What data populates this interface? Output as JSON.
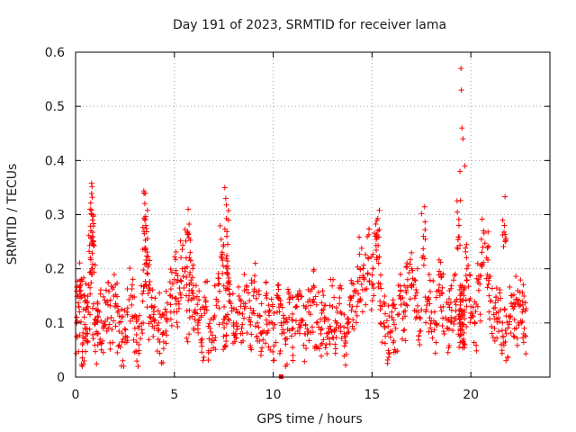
{
  "chart_data": {
    "type": "scatter",
    "title": "Day 191 of 2023, SRMTID for receiver lama",
    "xlabel": "GPS time / hours",
    "ylabel": "SRMTID / TECUs",
    "xlim": [
      0,
      24
    ],
    "ylim": [
      0,
      0.6
    ],
    "xticks": [
      0,
      5,
      10,
      15,
      20
    ],
    "xtick_labels": [
      "0",
      "5",
      "10",
      "15",
      "20"
    ],
    "yticks": [
      0,
      0.1,
      0.2,
      0.3,
      0.4,
      0.5,
      0.6
    ],
    "ytick_labels": [
      "0",
      "0.1",
      "0.2",
      "0.3",
      "0.4",
      "0.5",
      "0.6"
    ],
    "grid": true,
    "marker": "+",
    "color": "#ff0000",
    "series": [
      {
        "name": "SRMTID",
        "x": [
          0.05,
          0.15,
          0.25,
          0.35,
          0.45,
          0.55,
          0.65,
          0.75,
          0.82,
          0.85,
          0.9,
          0.95,
          1.05,
          1.2,
          1.4,
          1.6,
          1.8,
          2.0,
          2.2,
          2.4,
          2.6,
          2.8,
          3.0,
          3.2,
          3.4,
          3.5,
          3.55,
          3.6,
          3.7,
          3.8,
          4.0,
          4.2,
          4.4,
          4.6,
          4.8,
          5.0,
          5.2,
          5.4,
          5.6,
          5.7,
          5.8,
          5.9,
          6.0,
          6.2,
          6.4,
          6.6,
          6.8,
          7.0,
          7.2,
          7.4,
          7.55,
          7.6,
          7.65,
          7.7,
          7.8,
          8.0,
          8.2,
          8.4,
          8.6,
          8.8,
          9.0,
          9.2,
          9.4,
          9.6,
          9.8,
          10.0,
          10.2,
          10.4,
          10.6,
          10.8,
          11.0,
          11.2,
          11.4,
          11.6,
          11.8,
          12.0,
          12.2,
          12.4,
          12.6,
          12.8,
          13.0,
          13.2,
          13.4,
          13.6,
          13.8,
          14.0,
          14.2,
          14.4,
          14.6,
          14.8,
          15.0,
          15.2,
          15.3,
          15.4,
          15.6,
          15.8,
          16.0,
          16.2,
          16.4,
          16.6,
          16.8,
          17.0,
          17.2,
          17.4,
          17.6,
          17.8,
          18.0,
          18.2,
          18.4,
          18.6,
          18.8,
          19.0,
          19.2,
          19.4,
          19.45,
          19.5,
          19.52,
          19.55,
          19.6,
          19.7,
          19.8,
          20.0,
          20.2,
          20.4,
          20.6,
          20.8,
          21.0,
          21.2,
          21.4,
          21.6,
          21.7,
          21.8,
          22.0,
          22.2,
          22.4,
          22.6,
          22.7
        ],
        "y": [
          0.1,
          0.13,
          0.17,
          0.06,
          0.15,
          0.08,
          0.12,
          0.22,
          0.3,
          0.29,
          0.25,
          0.1,
          0.08,
          0.12,
          0.09,
          0.14,
          0.11,
          0.13,
          0.1,
          0.07,
          0.12,
          0.15,
          0.09,
          0.06,
          0.14,
          0.29,
          0.28,
          0.21,
          0.17,
          0.11,
          0.13,
          0.1,
          0.08,
          0.12,
          0.15,
          0.18,
          0.14,
          0.2,
          0.22,
          0.31,
          0.23,
          0.16,
          0.12,
          0.1,
          0.07,
          0.13,
          0.09,
          0.11,
          0.14,
          0.22,
          0.35,
          0.33,
          0.26,
          0.2,
          0.14,
          0.1,
          0.12,
          0.09,
          0.13,
          0.11,
          0.15,
          0.1,
          0.08,
          0.12,
          0.1,
          0.09,
          0.12,
          0.1,
          0.07,
          0.11,
          0.09,
          0.13,
          0.1,
          0.08,
          0.12,
          0.14,
          0.1,
          0.08,
          0.11,
          0.09,
          0.13,
          0.1,
          0.12,
          0.08,
          0.1,
          0.13,
          0.16,
          0.2,
          0.18,
          0.22,
          0.17,
          0.26,
          0.27,
          0.14,
          0.1,
          0.08,
          0.12,
          0.09,
          0.15,
          0.12,
          0.18,
          0.2,
          0.15,
          0.11,
          0.26,
          0.14,
          0.12,
          0.1,
          0.17,
          0.13,
          0.09,
          0.11,
          0.14,
          0.28,
          0.38,
          0.57,
          0.53,
          0.46,
          0.44,
          0.39,
          0.2,
          0.13,
          0.1,
          0.16,
          0.24,
          0.22,
          0.14,
          0.09,
          0.12,
          0.1,
          0.28,
          0.08,
          0.11,
          0.13,
          0.1,
          0.12,
          0.09
        ]
      }
    ],
    "annotation_points": [
      {
        "x": 10.4,
        "y": 0.0
      }
    ]
  }
}
